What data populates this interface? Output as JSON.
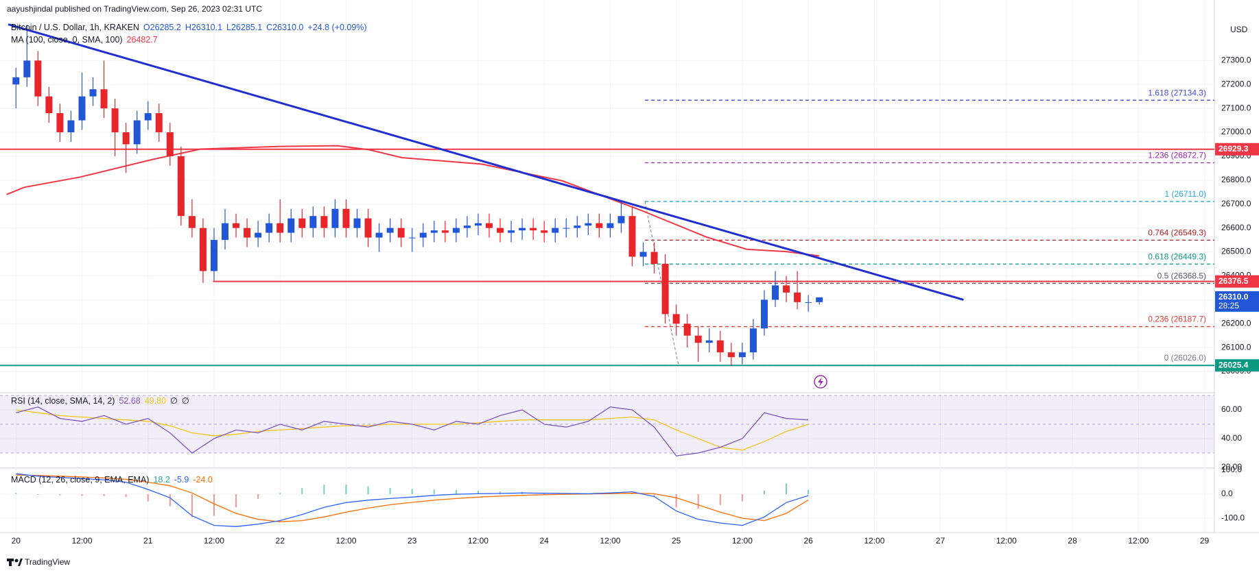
{
  "header": {
    "author": "aayushjindal published on TradingView.com, Sep 26, 2023 02:31 UTC",
    "brand": "TradingView"
  },
  "chart_data": {
    "type": "candlestick",
    "title": "Bitcoin / U.S. Dollar, 1h, KRAKEN",
    "ohlc_readout": [
      "O26285.2",
      "H26310.1",
      "L26285.1",
      "C26310.0",
      "+24.8 (+0.09%)"
    ],
    "currency": "USD",
    "up_color": "#2157d6",
    "down_color": "#e8262a",
    "x": [
      0,
      2,
      4,
      6,
      8,
      10,
      12,
      14,
      16,
      18,
      20,
      22,
      24,
      26,
      28,
      30,
      32,
      34,
      36,
      38,
      40,
      42,
      44,
      46,
      48,
      50,
      52,
      54,
      56,
      58,
      60,
      62,
      64,
      66,
      68,
      70,
      72,
      74,
      76,
      78,
      80,
      82,
      84,
      86,
      88,
      90,
      92,
      94,
      96,
      98,
      100,
      102,
      104,
      106,
      108,
      110,
      112,
      114,
      116,
      118,
      120,
      122,
      124,
      126,
      128,
      130,
      132,
      134,
      136,
      138,
      140,
      142,
      144,
      146
    ],
    "open": [
      27200,
      27230,
      27300,
      27150,
      27080,
      27000,
      27050,
      27150,
      27180,
      27100,
      27000,
      26950,
      27050,
      27080,
      27000,
      26900,
      26650,
      26600,
      26420,
      26550,
      26620,
      26600,
      26560,
      26580,
      26620,
      26580,
      26640,
      26600,
      26650,
      26600,
      26680,
      26600,
      26640,
      26560,
      26580,
      26600,
      26560,
      26560,
      26580,
      26590,
      26580,
      26600,
      26610,
      26620,
      26600,
      26580,
      26590,
      26600,
      26590,
      26580,
      26600,
      26600,
      26610,
      26620,
      26600,
      26620,
      26650,
      26480,
      26500,
      26450,
      26240,
      26200,
      26150,
      26120,
      26130,
      26080,
      26060,
      26080,
      26180,
      26300,
      26360,
      26330,
      26290,
      26290
    ],
    "high": [
      27270,
      27450,
      27340,
      27190,
      27120,
      27090,
      27250,
      27230,
      27300,
      27140,
      27040,
      27090,
      27130,
      27120,
      27040,
      26940,
      26720,
      26640,
      26600,
      26680,
      26660,
      26640,
      26630,
      26660,
      26720,
      26680,
      26680,
      26690,
      26690,
      26720,
      26720,
      26680,
      26680,
      26620,
      26640,
      26640,
      26600,
      26620,
      26630,
      26630,
      26640,
      26650,
      26660,
      26660,
      26640,
      26630,
      26640,
      26640,
      26630,
      26640,
      26640,
      26650,
      26660,
      26660,
      26660,
      26711,
      26690,
      26540,
      26540,
      26490,
      26280,
      26240,
      26190,
      26180,
      26170,
      26120,
      26120,
      26220,
      26340,
      26420,
      26400,
      26420,
      26320,
      26310
    ],
    "low": [
      27100,
      27190,
      27110,
      27040,
      26960,
      26960,
      27010,
      27110,
      27060,
      26900,
      26830,
      26910,
      27010,
      26960,
      26860,
      26610,
      26560,
      26370,
      26380,
      26510,
      26560,
      26520,
      26520,
      26540,
      26540,
      26540,
      26560,
      26560,
      26560,
      26560,
      26560,
      26560,
      26520,
      26500,
      26540,
      26520,
      26500,
      26520,
      26540,
      26540,
      26540,
      26560,
      26570,
      26560,
      26540,
      26540,
      26550,
      26550,
      26540,
      26540,
      26560,
      26560,
      26570,
      26560,
      26560,
      26580,
      26440,
      26440,
      26410,
      26200,
      26150,
      26100,
      26040,
      26080,
      26040,
      26026,
      26030,
      26050,
      26150,
      26270,
      26290,
      26260,
      26250,
      26280
    ],
    "close": [
      27230,
      27300,
      27150,
      27080,
      27000,
      27050,
      27150,
      27180,
      27100,
      27000,
      26950,
      27050,
      27080,
      27000,
      26900,
      26650,
      26600,
      26420,
      26550,
      26620,
      26600,
      26560,
      26580,
      26620,
      26580,
      26640,
      26600,
      26650,
      26600,
      26680,
      26600,
      26640,
      26560,
      26580,
      26600,
      26560,
      26560,
      26580,
      26590,
      26580,
      26600,
      26610,
      26620,
      26600,
      26580,
      26590,
      26600,
      26590,
      26580,
      26600,
      26600,
      26610,
      26620,
      26600,
      26620,
      26650,
      26480,
      26500,
      26450,
      26240,
      26200,
      26150,
      26120,
      26130,
      26080,
      26060,
      26080,
      26180,
      26300,
      26360,
      26330,
      26290,
      26290,
      26310
    ],
    "xlim": [
      -2.9,
      217.8
    ],
    "xticks": [
      {
        "value": 0,
        "label": "20"
      },
      {
        "value": 12,
        "label": "12:00"
      },
      {
        "value": 24,
        "label": "21"
      },
      {
        "value": 36,
        "label": "12:00"
      },
      {
        "value": 48,
        "label": "22"
      },
      {
        "value": 60,
        "label": "12:00"
      },
      {
        "value": 72,
        "label": "23"
      },
      {
        "value": 84,
        "label": "12:00"
      },
      {
        "value": 96,
        "label": "24"
      },
      {
        "value": 108,
        "label": "12:00"
      },
      {
        "value": 120,
        "label": "25"
      },
      {
        "value": 132,
        "label": "12:00"
      },
      {
        "value": 144,
        "label": "26"
      },
      {
        "value": 156,
        "label": "12:00"
      },
      {
        "value": 168,
        "label": "27"
      },
      {
        "value": 180,
        "label": "12:00"
      },
      {
        "value": 192,
        "label": "28"
      },
      {
        "value": 204,
        "label": "12:00"
      },
      {
        "value": 216,
        "label": "29"
      }
    ],
    "ylim": [
      25920,
      27470
    ],
    "yticks": [
      {
        "value": 27300,
        "label": "27300.0"
      },
      {
        "value": 27200,
        "label": "27200.0"
      },
      {
        "value": 27100,
        "label": "27100.0"
      },
      {
        "value": 27000,
        "label": "27000.0"
      },
      {
        "value": 26900,
        "label": "26900.0"
      },
      {
        "value": 26800,
        "label": "26800.0"
      },
      {
        "value": 26700,
        "label": "26700.0"
      },
      {
        "value": 26600,
        "label": "26600.0"
      },
      {
        "value": 26500,
        "label": "26500.0"
      },
      {
        "value": 26400,
        "label": "26400.0"
      },
      {
        "value": 26300,
        "label": "26300.0"
      },
      {
        "value": 26200,
        "label": "26200.0"
      },
      {
        "value": 26100,
        "label": "26100.0"
      },
      {
        "value": 26000,
        "label": "26000.0"
      }
    ],
    "grid": true,
    "ma": {
      "name": "MA (100, close, 0, SMA, 100)",
      "last": "26482.7",
      "color": "#f23645",
      "x": [
        -1.7,
        1.5,
        11.7,
        24.9,
        33.6,
        48.2,
        58.4,
        64.2,
        70.1,
        84.7,
        99.3,
        113.8,
        125.5,
        132.8,
        140.1,
        146
      ],
      "values": [
        26740,
        26770,
        26813,
        26887,
        26930,
        26941,
        26944,
        26927,
        26894,
        26867,
        26797,
        26672,
        26562,
        26511,
        26501,
        26483
      ]
    },
    "trendline": {
      "color": "#1f2fd0",
      "x": [
        -1.4,
        172.2
      ],
      "values": [
        27451,
        26300
      ]
    },
    "fib_trend": {
      "color": "#787b86",
      "x": [
        114.3,
        120.4
      ],
      "values": [
        26711,
        26026
      ]
    },
    "fib_from": 114.3,
    "fib": [
      {
        "label": "1.618 (27134.3)",
        "value": 27134.3,
        "color": "#3f4ad8"
      },
      {
        "label": "1.236 (26872.7)",
        "value": 26872.7,
        "color": "#9c27b0"
      },
      {
        "label": "1 (26711.0)",
        "value": 26711,
        "color": "#26a7d8"
      },
      {
        "label": "0.764 (26549.3)",
        "value": 26549.3,
        "color": "#b71c1c"
      },
      {
        "label": "0.618 (26449.3)",
        "value": 26449.3,
        "color": "#089981"
      },
      {
        "label": "0.5 (26368.5)",
        "value": 26368.5,
        "color": "#555a66"
      },
      {
        "label": "0.236 (26187.7)",
        "value": 26187.7,
        "color": "#e53935"
      },
      {
        "label": "0 (26026.0)",
        "value": 26026,
        "color": "#787b86"
      }
    ],
    "markers": [
      {
        "price": 26929.3,
        "color": "#f23645",
        "line_from": -2.9
      },
      {
        "price": 26376.5,
        "color": "#f23645",
        "line_from": 35.8
      },
      {
        "price": {
          "value": 26310,
          "label": "26310.0"
        },
        "timer": "28:25",
        "color": "#2157d6"
      },
      {
        "price": 26025.4,
        "color": "#089981",
        "line_from": -2.9
      }
    ],
    "rsi": {
      "name": "RSI (14, close, SMA, 14, 2)",
      "last": "52.68",
      "ma_last": "49.80",
      "extra": [
        "∅",
        "∅"
      ],
      "color": "#7e57c2",
      "ma_color": "#f5c518",
      "ylim": [
        20,
        70.5
      ],
      "band": [
        30,
        70
      ],
      "levels": [
        70,
        50,
        30
      ],
      "yticks": [
        {
          "value": 60,
          "label": "60.00"
        },
        {
          "value": 40,
          "label": "40.00"
        },
        {
          "value": 20,
          "label": "20.00"
        }
      ],
      "x": [
        0,
        4,
        8,
        12,
        16,
        20,
        24,
        28,
        32,
        36,
        40,
        44,
        48,
        52,
        56,
        60,
        64,
        68,
        72,
        76,
        80,
        84,
        88,
        92,
        96,
        100,
        104,
        108,
        112,
        116,
        120,
        124,
        128,
        132,
        136,
        140,
        144
      ],
      "values": [
        58,
        62,
        54,
        52,
        56,
        50,
        54,
        44,
        30,
        40,
        46,
        44,
        50,
        46,
        52,
        50,
        48,
        52,
        50,
        46,
        52,
        50,
        56,
        60,
        50,
        48,
        52,
        62,
        60,
        48,
        28,
        30,
        34,
        40,
        58,
        54,
        53
      ],
      "ma": [
        60,
        58,
        56,
        55,
        54,
        53,
        52,
        49,
        44,
        42,
        43,
        45,
        46,
        47,
        48,
        49,
        49,
        50,
        50,
        50,
        50,
        51,
        52,
        53,
        53,
        53,
        53,
        54,
        55,
        53,
        46,
        40,
        34,
        32,
        38,
        45,
        50
      ]
    },
    "macd": {
      "name": "MACD (12, 26, close, 9, EMA, EMA)",
      "hist_last": "18.2",
      "macd_last": "-5.9",
      "signal_last": "-24.0",
      "macd_color": "#2962ff",
      "signal_color": "#ff6d00",
      "pos_color": "#26a69a",
      "neg_color": "#ef5350",
      "ylim": [
        -154,
        103
      ],
      "yticks": [
        {
          "value": 100,
          "label": "100.0"
        },
        {
          "value": 0,
          "label": "0.0"
        },
        {
          "value": -100,
          "label": "-100.0"
        }
      ],
      "x": [
        0,
        4,
        8,
        12,
        16,
        20,
        24,
        28,
        32,
        36,
        40,
        44,
        48,
        52,
        56,
        60,
        64,
        68,
        72,
        76,
        80,
        84,
        88,
        92,
        96,
        100,
        104,
        108,
        112,
        116,
        120,
        124,
        128,
        132,
        136,
        140,
        144
      ],
      "values": [
        85,
        75,
        70,
        65,
        60,
        50,
        20,
        -15,
        -90,
        -130,
        -135,
        -125,
        -110,
        -85,
        -55,
        -35,
        -25,
        -18,
        -12,
        -5,
        0,
        2,
        3,
        5,
        4,
        3,
        2,
        5,
        10,
        -10,
        -70,
        -105,
        -120,
        -130,
        -95,
        -35,
        -5.9
      ],
      "signal": [
        80,
        78,
        75,
        72,
        68,
        62,
        50,
        35,
        5,
        -40,
        -80,
        -105,
        -115,
        -110,
        -95,
        -75,
        -58,
        -44,
        -34,
        -25,
        -18,
        -12,
        -8,
        -5,
        -2,
        0,
        1,
        2,
        4,
        2,
        -15,
        -45,
        -75,
        -100,
        -110,
        -80,
        -24
      ],
      "hist": [
        5,
        -3,
        -5,
        -7,
        -8,
        -12,
        -30,
        -50,
        -95,
        -90,
        -55,
        -20,
        5,
        25,
        40,
        40,
        33,
        26,
        22,
        20,
        18,
        14,
        11,
        10,
        6,
        3,
        1,
        3,
        6,
        -12,
        -55,
        -60,
        -45,
        -30,
        15,
        45,
        18.2
      ]
    }
  }
}
